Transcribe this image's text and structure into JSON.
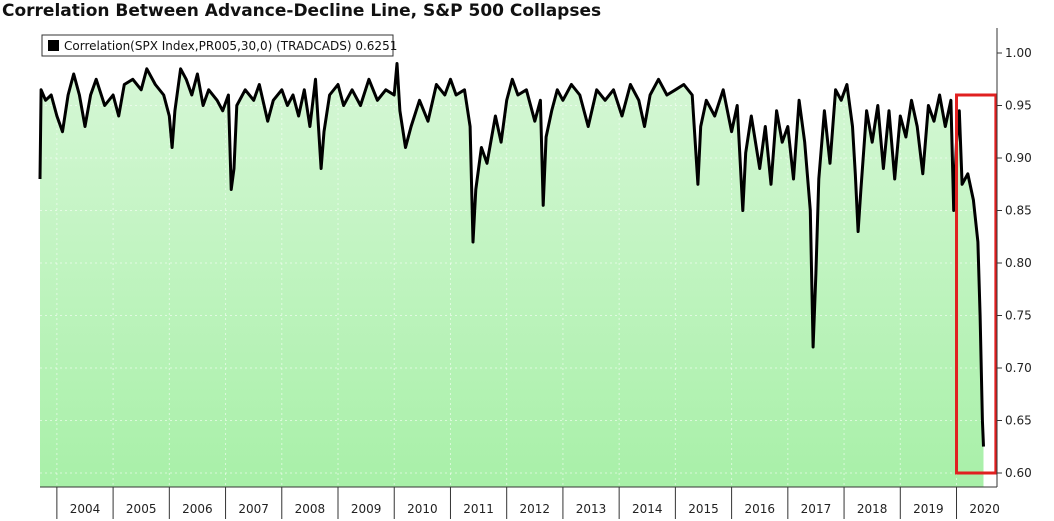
{
  "chart_data": {
    "type": "area",
    "title": "Correlation Between Advance-Decline Line, S&P 500 Collapses",
    "legend": {
      "label": "Correlation(SPX Index,PR005,30,0) (TRADCADS) 0.6251",
      "placement": "top-left"
    },
    "ylim": [
      0.6,
      1.0
    ],
    "y_ticks": [
      "1.00",
      "0.95",
      "0.90",
      "0.85",
      "0.80",
      "0.75",
      "0.70",
      "0.65",
      "0.60"
    ],
    "x_ticks": [
      "2004",
      "2005",
      "2006",
      "2007",
      "2008",
      "2009",
      "2010",
      "2011",
      "2012",
      "2013",
      "2014",
      "2015",
      "2016",
      "2017",
      "2018",
      "2019",
      "2020"
    ],
    "xlim": [
      2003.7,
      2020.72
    ],
    "grid": true,
    "highlight_box": {
      "x": [
        2020.0,
        2020.7
      ],
      "y": [
        0.6,
        0.96
      ],
      "color": "#e02020"
    },
    "colors": {
      "line": "#000000",
      "fill_top": "#d6f7d6",
      "fill_bottom": "#a8f0a8"
    },
    "series": [
      {
        "name": "Correlation(SPX Index,PR005,30,0) (TRADCADS)",
        "points": [
          [
            2003.7,
            0.88
          ],
          [
            2003.72,
            0.965
          ],
          [
            2003.8,
            0.955
          ],
          [
            2003.9,
            0.96
          ],
          [
            2004.0,
            0.94
          ],
          [
            2004.1,
            0.925
          ],
          [
            2004.2,
            0.96
          ],
          [
            2004.3,
            0.98
          ],
          [
            2004.4,
            0.96
          ],
          [
            2004.5,
            0.93
          ],
          [
            2004.6,
            0.96
          ],
          [
            2004.7,
            0.975
          ],
          [
            2004.85,
            0.95
          ],
          [
            2005.0,
            0.96
          ],
          [
            2005.1,
            0.94
          ],
          [
            2005.2,
            0.97
          ],
          [
            2005.35,
            0.975
          ],
          [
            2005.5,
            0.965
          ],
          [
            2005.6,
            0.985
          ],
          [
            2005.75,
            0.97
          ],
          [
            2005.9,
            0.96
          ],
          [
            2006.0,
            0.94
          ],
          [
            2006.05,
            0.91
          ],
          [
            2006.1,
            0.945
          ],
          [
            2006.2,
            0.985
          ],
          [
            2006.3,
            0.975
          ],
          [
            2006.4,
            0.96
          ],
          [
            2006.5,
            0.98
          ],
          [
            2006.6,
            0.95
          ],
          [
            2006.7,
            0.965
          ],
          [
            2006.85,
            0.955
          ],
          [
            2006.95,
            0.945
          ],
          [
            2007.05,
            0.96
          ],
          [
            2007.1,
            0.87
          ],
          [
            2007.15,
            0.89
          ],
          [
            2007.2,
            0.95
          ],
          [
            2007.35,
            0.965
          ],
          [
            2007.5,
            0.955
          ],
          [
            2007.6,
            0.97
          ],
          [
            2007.75,
            0.935
          ],
          [
            2007.85,
            0.955
          ],
          [
            2008.0,
            0.965
          ],
          [
            2008.1,
            0.95
          ],
          [
            2008.2,
            0.96
          ],
          [
            2008.3,
            0.94
          ],
          [
            2008.4,
            0.965
          ],
          [
            2008.5,
            0.93
          ],
          [
            2008.6,
            0.975
          ],
          [
            2008.7,
            0.89
          ],
          [
            2008.75,
            0.925
          ],
          [
            2008.85,
            0.96
          ],
          [
            2009.0,
            0.97
          ],
          [
            2009.1,
            0.95
          ],
          [
            2009.25,
            0.965
          ],
          [
            2009.4,
            0.95
          ],
          [
            2009.55,
            0.975
          ],
          [
            2009.7,
            0.955
          ],
          [
            2009.85,
            0.965
          ],
          [
            2010.0,
            0.96
          ],
          [
            2010.05,
            0.99
          ],
          [
            2010.1,
            0.945
          ],
          [
            2010.2,
            0.91
          ],
          [
            2010.3,
            0.93
          ],
          [
            2010.45,
            0.955
          ],
          [
            2010.6,
            0.935
          ],
          [
            2010.75,
            0.97
          ],
          [
            2010.9,
            0.96
          ],
          [
            2011.0,
            0.975
          ],
          [
            2011.1,
            0.96
          ],
          [
            2011.25,
            0.965
          ],
          [
            2011.35,
            0.93
          ],
          [
            2011.4,
            0.82
          ],
          [
            2011.45,
            0.87
          ],
          [
            2011.55,
            0.91
          ],
          [
            2011.65,
            0.895
          ],
          [
            2011.8,
            0.94
          ],
          [
            2011.9,
            0.915
          ],
          [
            2012.0,
            0.955
          ],
          [
            2012.1,
            0.975
          ],
          [
            2012.2,
            0.96
          ],
          [
            2012.35,
            0.965
          ],
          [
            2012.5,
            0.935
          ],
          [
            2012.6,
            0.955
          ],
          [
            2012.65,
            0.855
          ],
          [
            2012.7,
            0.92
          ],
          [
            2012.8,
            0.945
          ],
          [
            2012.9,
            0.965
          ],
          [
            2013.0,
            0.955
          ],
          [
            2013.15,
            0.97
          ],
          [
            2013.3,
            0.96
          ],
          [
            2013.45,
            0.93
          ],
          [
            2013.6,
            0.965
          ],
          [
            2013.75,
            0.955
          ],
          [
            2013.9,
            0.965
          ],
          [
            2014.05,
            0.94
          ],
          [
            2014.2,
            0.97
          ],
          [
            2014.35,
            0.955
          ],
          [
            2014.45,
            0.93
          ],
          [
            2014.55,
            0.96
          ],
          [
            2014.7,
            0.975
          ],
          [
            2014.85,
            0.96
          ],
          [
            2015.0,
            0.965
          ],
          [
            2015.15,
            0.97
          ],
          [
            2015.3,
            0.96
          ],
          [
            2015.4,
            0.875
          ],
          [
            2015.45,
            0.93
          ],
          [
            2015.55,
            0.955
          ],
          [
            2015.7,
            0.94
          ],
          [
            2015.85,
            0.965
          ],
          [
            2016.0,
            0.925
          ],
          [
            2016.1,
            0.95
          ],
          [
            2016.2,
            0.85
          ],
          [
            2016.25,
            0.905
          ],
          [
            2016.35,
            0.94
          ],
          [
            2016.5,
            0.89
          ],
          [
            2016.6,
            0.93
          ],
          [
            2016.7,
            0.875
          ],
          [
            2016.8,
            0.945
          ],
          [
            2016.9,
            0.915
          ],
          [
            2017.0,
            0.93
          ],
          [
            2017.1,
            0.88
          ],
          [
            2017.2,
            0.955
          ],
          [
            2017.3,
            0.915
          ],
          [
            2017.4,
            0.85
          ],
          [
            2017.45,
            0.72
          ],
          [
            2017.5,
            0.79
          ],
          [
            2017.55,
            0.88
          ],
          [
            2017.65,
            0.945
          ],
          [
            2017.75,
            0.895
          ],
          [
            2017.85,
            0.965
          ],
          [
            2017.95,
            0.955
          ],
          [
            2018.05,
            0.97
          ],
          [
            2018.15,
            0.93
          ],
          [
            2018.2,
            0.885
          ],
          [
            2018.25,
            0.83
          ],
          [
            2018.3,
            0.87
          ],
          [
            2018.4,
            0.945
          ],
          [
            2018.5,
            0.915
          ],
          [
            2018.6,
            0.95
          ],
          [
            2018.7,
            0.89
          ],
          [
            2018.8,
            0.945
          ],
          [
            2018.9,
            0.88
          ],
          [
            2019.0,
            0.94
          ],
          [
            2019.1,
            0.92
          ],
          [
            2019.2,
            0.955
          ],
          [
            2019.3,
            0.93
          ],
          [
            2019.4,
            0.885
          ],
          [
            2019.5,
            0.95
          ],
          [
            2019.6,
            0.935
          ],
          [
            2019.7,
            0.96
          ],
          [
            2019.8,
            0.93
          ],
          [
            2019.9,
            0.955
          ],
          [
            2019.95,
            0.85
          ],
          [
            2020.0,
            0.915
          ],
          [
            2020.05,
            0.945
          ],
          [
            2020.1,
            0.875
          ],
          [
            2020.2,
            0.885
          ],
          [
            2020.3,
            0.86
          ],
          [
            2020.38,
            0.82
          ],
          [
            2020.42,
            0.75
          ],
          [
            2020.46,
            0.65
          ],
          [
            2020.48,
            0.6251
          ]
        ]
      }
    ]
  }
}
